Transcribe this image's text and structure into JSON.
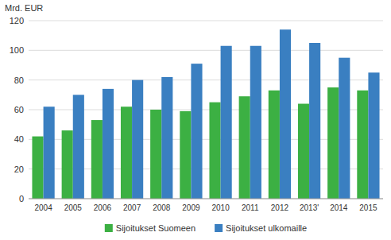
{
  "chart_data": {
    "type": "bar",
    "ylabel": "Mrd. EUR",
    "categories": [
      "2004",
      "2005",
      "2006",
      "2007",
      "2008",
      "2009",
      "2010",
      "2011",
      "2012",
      "2013'",
      "2014",
      "2015"
    ],
    "series": [
      {
        "name": "Sijoitukset Suomeen",
        "color": "#3cb043",
        "values": [
          42,
          46,
          53,
          62,
          60,
          59,
          65,
          69,
          73,
          64,
          75,
          73
        ]
      },
      {
        "name": "Sijoitukset ulkomaille",
        "color": "#3a7fc1",
        "values": [
          62,
          70,
          74,
          80,
          82,
          91,
          103,
          103,
          114,
          105,
          95,
          85
        ]
      }
    ],
    "ylim": [
      0,
      120
    ],
    "yticks": [
      0,
      20,
      40,
      60,
      80,
      100,
      120
    ],
    "grid": true,
    "legend": "bottom"
  }
}
